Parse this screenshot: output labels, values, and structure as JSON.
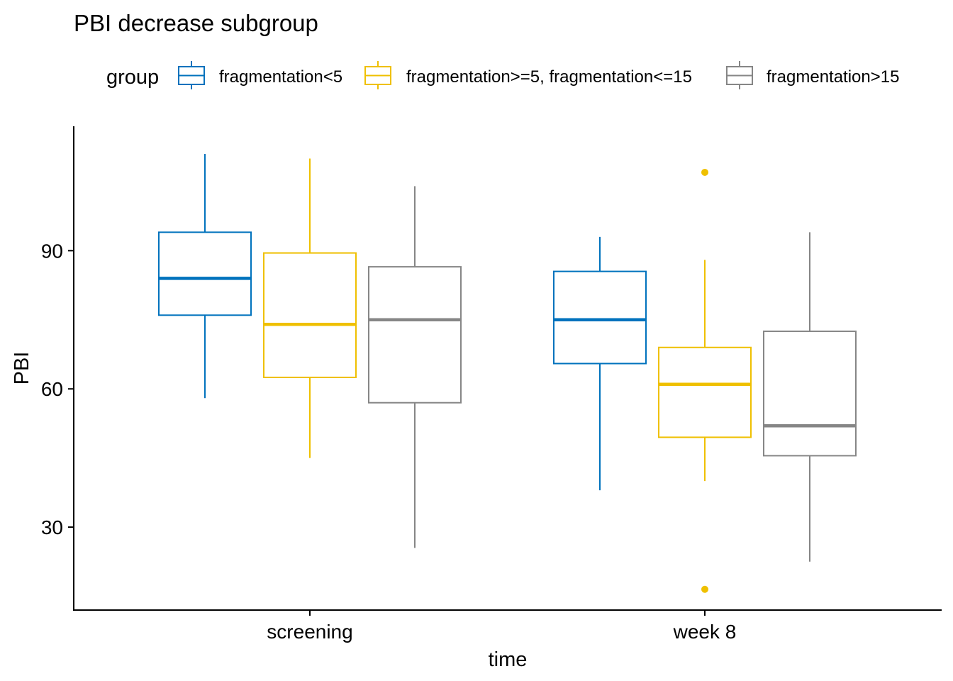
{
  "chart_data": {
    "type": "boxplot",
    "title": "PBI decrease subgroup",
    "xlabel": "time",
    "ylabel": "PBI",
    "ylim": [
      12,
      117
    ],
    "yticks": [
      30,
      60,
      90
    ],
    "grid": false,
    "legend": {
      "title": "group",
      "position": "top"
    },
    "categories": [
      "screening",
      "week 8"
    ],
    "series": [
      {
        "name": "fragmentation<5",
        "color": "#0072BD",
        "boxes": [
          {
            "whisker_low": 58,
            "q1": 76,
            "median": 84,
            "q3": 94,
            "whisker_high": 111,
            "outliers": []
          },
          {
            "whisker_low": 38,
            "q1": 65.5,
            "median": 75,
            "q3": 85.5,
            "whisker_high": 93,
            "outliers": []
          }
        ]
      },
      {
        "name": "fragmentation>=5, fragmentation<=15",
        "color": "#EFC000",
        "boxes": [
          {
            "whisker_low": 45,
            "q1": 62.5,
            "median": 74,
            "q3": 89.5,
            "whisker_high": 110,
            "outliers": []
          },
          {
            "whisker_low": 40,
            "q1": 49.5,
            "median": 61,
            "q3": 69,
            "whisker_high": 88,
            "outliers": [
              107,
              16.5
            ]
          }
        ]
      },
      {
        "name": "fragmentation>15",
        "color": "#868686",
        "boxes": [
          {
            "whisker_low": 25.5,
            "q1": 57,
            "median": 75,
            "q3": 86.5,
            "whisker_high": 104,
            "outliers": []
          },
          {
            "whisker_low": 22.5,
            "q1": 45.5,
            "median": 52,
            "q3": 72.5,
            "whisker_high": 94,
            "outliers": []
          }
        ]
      }
    ]
  }
}
